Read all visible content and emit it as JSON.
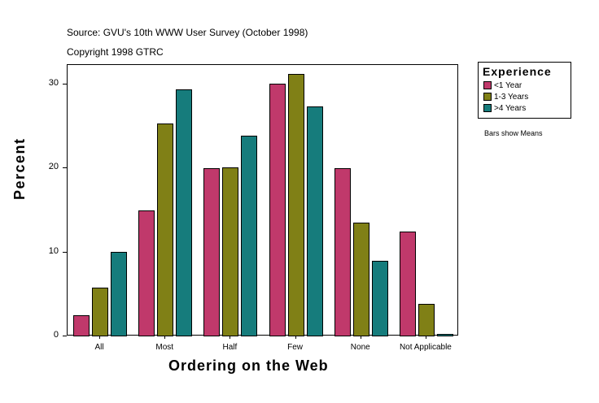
{
  "header": {
    "source": "Source: GVU's 10th WWW User Survey (October 1998)",
    "copyright": "Copyright 1998 GTRC"
  },
  "legend": {
    "title": "Experience",
    "items": [
      {
        "label": "<1 Year",
        "color": "#c0396b"
      },
      {
        "label": "1-3 Years",
        "color": "#808016"
      },
      {
        "label": ">4 Years",
        "color": "#167c7c"
      }
    ]
  },
  "note": "Bars show Means",
  "axes": {
    "ylabel": "Percent",
    "xlabel": "Ordering on the Web",
    "yticks": [
      "0",
      "10",
      "20",
      "30"
    ]
  },
  "chart_data": {
    "type": "bar",
    "title": "",
    "subtitle": "Source: GVU's 10th WWW User Survey (October 1998); Copyright 1998 GTRC",
    "xlabel": "Ordering on the Web",
    "ylabel": "Percent",
    "categories": [
      "All",
      "Most",
      "Half",
      "Few",
      "None",
      "Not Applicable"
    ],
    "series": [
      {
        "name": "<1 Year",
        "color": "#c0396b",
        "values": [
          2.5,
          15.0,
          20.0,
          30.1,
          20.0,
          12.5
        ]
      },
      {
        "name": "1-3 Years",
        "color": "#808016",
        "values": [
          5.8,
          25.4,
          20.1,
          31.3,
          13.6,
          3.9
        ]
      },
      {
        "name": ">4 Years",
        "color": "#167c7c",
        "values": [
          10.1,
          29.4,
          23.9,
          27.4,
          9.0,
          0.3
        ]
      }
    ],
    "ylim": [
      0,
      32.3
    ],
    "yticks": [
      0,
      10,
      20,
      30
    ],
    "legend_title": "Experience",
    "legend_position": "right",
    "grid": false,
    "annotations": [
      "Bars show Means"
    ]
  }
}
